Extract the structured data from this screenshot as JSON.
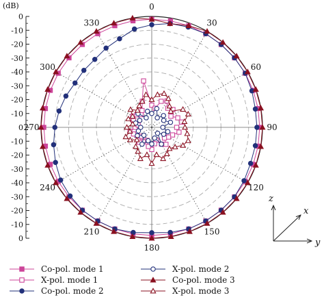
{
  "chart_data": {
    "type": "polar",
    "unit_label": "(dB)",
    "r_range": [
      -40,
      0
    ],
    "r_ticks": [
      0,
      -10,
      -20,
      -30,
      -40,
      -30,
      -20,
      -10,
      0,
      -10,
      -20,
      -30,
      -40,
      -30,
      -20,
      -10,
      0
    ],
    "angle_ticks": [
      "0",
      "30",
      "60",
      "90",
      "120",
      "150",
      "180",
      "210",
      "240",
      "270",
      "300",
      "330"
    ],
    "angles_deg": [
      0,
      30,
      60,
      90,
      120,
      150,
      180,
      210,
      240,
      270,
      300,
      330
    ],
    "axes": {
      "z": "z",
      "x": "x",
      "y": "y"
    },
    "series": [
      {
        "name": "Co-pol. mode 1",
        "color": "#cc4499",
        "marker": "square",
        "filled": true,
        "theta": [
          0,
          10,
          20,
          30,
          40,
          50,
          60,
          70,
          80,
          90,
          100,
          110,
          120,
          130,
          140,
          150,
          160,
          170,
          180,
          190,
          200,
          210,
          220,
          230,
          240,
          250,
          260,
          270,
          280,
          290,
          300,
          310,
          320,
          330,
          340,
          350
        ],
        "r": [
          -1,
          -1,
          -1,
          -1,
          -1,
          -1,
          -1,
          -1,
          -1,
          -1,
          -1,
          -1,
          -1,
          -1,
          -1,
          -1,
          -1,
          -1,
          -1,
          -1,
          -1,
          -1,
          -1,
          -1,
          -1,
          -1,
          -1,
          -1,
          -1,
          -1,
          -1,
          -1,
          -1,
          -1,
          -1,
          -1
        ]
      },
      {
        "name": "X-pol. mode 1",
        "color": "#cc4499",
        "marker": "square",
        "filled": false,
        "theta": [
          0,
          10,
          20,
          30,
          40,
          50,
          60,
          70,
          80,
          90,
          100,
          110,
          120,
          130,
          140,
          150,
          160,
          170,
          180,
          190,
          200,
          210,
          220,
          230,
          240,
          250,
          260,
          270,
          280,
          290,
          300,
          310,
          320,
          330,
          340,
          350
        ],
        "r": [
          -32,
          -33,
          -30,
          -29,
          -31,
          -30,
          -32,
          -30,
          -29,
          -31,
          -30,
          -32,
          -33,
          -34,
          -32,
          -33,
          -35,
          -34,
          -32,
          -33,
          -35,
          -34,
          -33,
          -35,
          -34,
          -33,
          -32,
          -34,
          -35,
          -33,
          -32,
          -33,
          -34,
          -33,
          -30,
          -23
        ]
      },
      {
        "name": "Co-pol. mode 2",
        "color": "#22307a",
        "marker": "circle",
        "filled": true,
        "theta": [
          0,
          10,
          20,
          30,
          40,
          50,
          60,
          70,
          80,
          90,
          100,
          110,
          120,
          130,
          140,
          150,
          160,
          170,
          180,
          190,
          200,
          210,
          220,
          230,
          240,
          250,
          260,
          270,
          280,
          290,
          300,
          310,
          320,
          330,
          340,
          350
        ],
        "r": [
          -3,
          -2,
          -1.5,
          -1,
          -1,
          -1,
          -1,
          -1.5,
          -2,
          -2,
          -2,
          -2,
          -1.5,
          -1,
          -1,
          -1,
          -1,
          -1.5,
          -2,
          -1.5,
          -1,
          -1,
          -1,
          -1.5,
          -2,
          -3,
          -4,
          -5,
          -6,
          -7,
          -8,
          -8,
          -8,
          -7,
          -6,
          -4
        ]
      },
      {
        "name": "X-pol. mode 2",
        "color": "#22307a",
        "marker": "circle",
        "filled": false,
        "theta": [
          0,
          15,
          30,
          45,
          60,
          75,
          90,
          105,
          120,
          135,
          150,
          165,
          180,
          195,
          210,
          225,
          240,
          255,
          270,
          285,
          300,
          315,
          330,
          345
        ],
        "r": [
          -35,
          -33,
          -36,
          -34,
          -35,
          -33,
          -36,
          -34,
          -35,
          -37,
          -33,
          -36,
          -34,
          -35,
          -33,
          -36,
          -34,
          -35,
          -36,
          -34,
          -35,
          -33,
          -36,
          -34
        ]
      },
      {
        "name": "Co-pol. mode 3",
        "color": "#8a1020",
        "marker": "triangle",
        "filled": true,
        "theta": [
          0,
          10,
          20,
          30,
          40,
          50,
          60,
          70,
          80,
          90,
          100,
          110,
          120,
          130,
          140,
          150,
          160,
          170,
          180,
          190,
          200,
          210,
          220,
          230,
          240,
          250,
          260,
          270,
          280,
          290,
          300,
          310,
          320,
          330,
          340,
          350
        ],
        "r": [
          -1,
          -2,
          -1,
          0,
          0,
          0,
          0,
          0,
          0,
          0,
          0,
          0,
          0,
          0,
          0,
          0,
          0,
          0,
          0,
          0,
          0,
          0,
          0,
          0,
          0,
          0,
          0,
          0,
          0,
          0,
          0,
          0,
          0,
          0,
          0,
          0
        ]
      },
      {
        "name": "X-pol. mode 3",
        "color": "#8a1020",
        "marker": "triangle",
        "filled": false,
        "theta": [
          0,
          10,
          20,
          30,
          40,
          50,
          60,
          70,
          80,
          90,
          100,
          110,
          120,
          130,
          140,
          150,
          160,
          170,
          180,
          190,
          200,
          210,
          220,
          230,
          240,
          250,
          260,
          270,
          280,
          290,
          300,
          310,
          320,
          330,
          340,
          350
        ],
        "r": [
          -30,
          -28,
          -27,
          -28,
          -30,
          -31,
          -27,
          -26,
          -28,
          -28,
          -27,
          -26,
          -27,
          -29,
          -30,
          -29,
          -28,
          -30,
          -27,
          -30,
          -28,
          -30,
          -31,
          -33,
          -31,
          -30,
          -32,
          -31,
          -33,
          -31,
          -32,
          -30,
          -32,
          -31,
          -30,
          -28
        ]
      }
    ]
  },
  "legend": [
    {
      "label": "Co-pol. mode 1",
      "series": 0
    },
    {
      "label": "X-pol. mode 2",
      "series": 3
    },
    {
      "label": "X-pol. mode 1",
      "series": 1
    },
    {
      "label": "Co-pol. mode 3",
      "series": 4
    },
    {
      "label": "Co-pol. mode 2",
      "series": 2
    },
    {
      "label": "X-pol. mode 3",
      "series": 5
    }
  ]
}
